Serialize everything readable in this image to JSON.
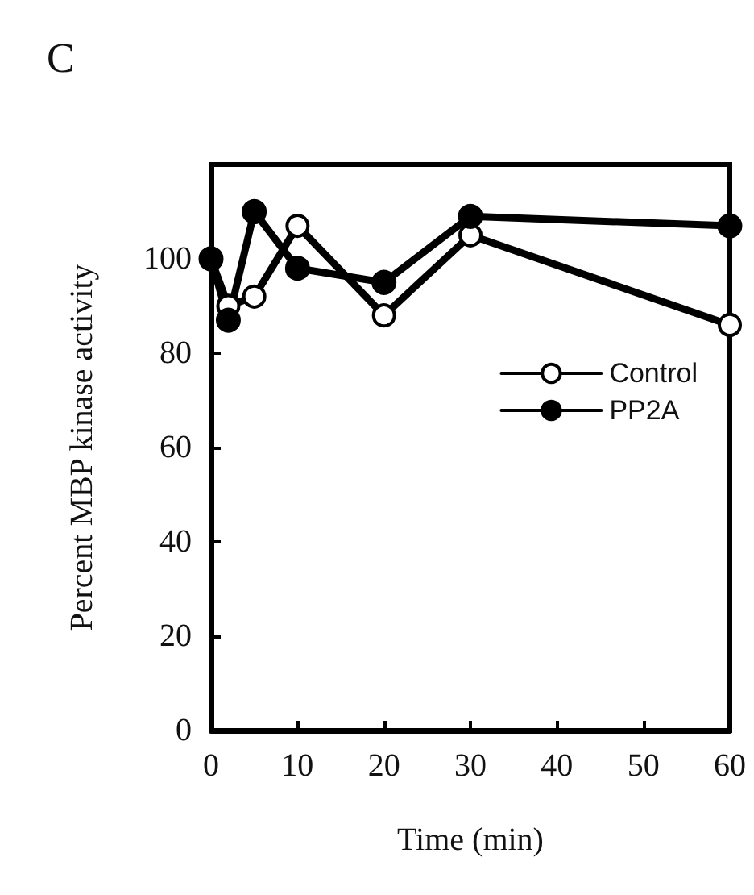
{
  "chart_data": {
    "type": "line",
    "title": "C",
    "xlabel": "Time (min)",
    "ylabel": "Percent MBP kinase activity",
    "x": [
      0,
      2,
      5,
      10,
      20,
      30,
      60
    ],
    "series": [
      {
        "name": "Control",
        "color": "#000000",
        "marker": "open circle",
        "values": [
          100,
          90,
          92,
          107,
          88,
          105,
          86
        ]
      },
      {
        "name": "PP2A",
        "color": "#000000",
        "marker": "circle",
        "values": [
          100,
          87,
          110,
          98,
          95,
          109,
          107
        ]
      }
    ],
    "xlim": [
      0,
      60
    ],
    "xticks": [
      0,
      10,
      20,
      30,
      40,
      50,
      60
    ],
    "ylim": [
      0,
      120
    ],
    "yticks": [
      0,
      20,
      40,
      60,
      80,
      100
    ],
    "grid": false,
    "legend": "right",
    "line_style": "solid"
  }
}
